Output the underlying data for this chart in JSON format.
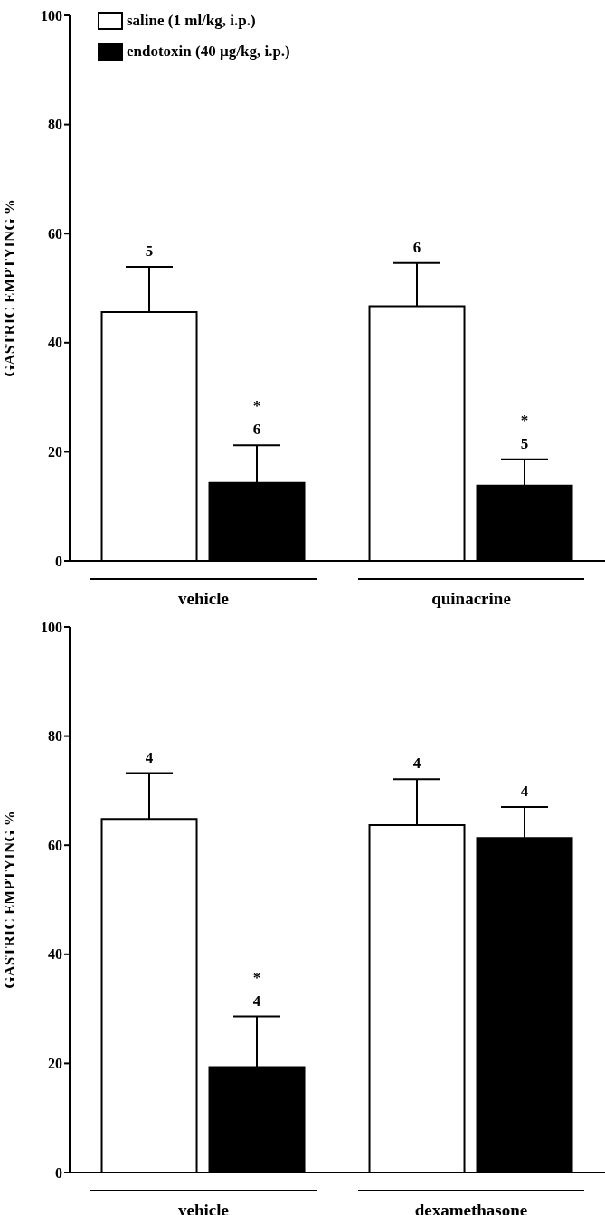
{
  "chart_data": [
    {
      "type": "bar",
      "ylabel": "GASTRIC EMPTYING %",
      "categories": [
        "vehicle",
        "quinacrine"
      ],
      "ylim": [
        0,
        100
      ],
      "yticks": [
        0,
        20,
        40,
        60,
        80,
        100
      ],
      "grid": false,
      "legend": "top left",
      "series": [
        {
          "name": "saline (1 ml/kg, i.p.)",
          "color": "#ffffff",
          "values": [
            45.6,
            46.7
          ],
          "errors": [
            [
              45.6,
              53.9
            ],
            [
              46.7,
              54.6
            ]
          ]
        },
        {
          "name": "endotoxin (40 µg/kg, i.p.)",
          "color": "#000000",
          "values": [
            14.3,
            13.8
          ],
          "errors": [
            [
              14.3,
              21.2
            ],
            [
              13.8,
              18.6
            ]
          ]
        }
      ],
      "annotations": [
        "5",
        "*\n6",
        "6",
        "*\n5"
      ]
    },
    {
      "type": "bar",
      "ylabel": "GASTRIC EMPTYING %",
      "categories": [
        "vehicle",
        "dexamethasone"
      ],
      "ylim": [
        0,
        100
      ],
      "yticks": [
        0,
        20,
        40,
        60,
        80,
        100
      ],
      "grid": false,
      "legend": false,
      "series": [
        {
          "color": "#ffffff",
          "values": [
            64.8,
            63.7
          ],
          "errors": [
            [
              64.8,
              73.2
            ],
            [
              63.7,
              72.1
            ]
          ]
        },
        {
          "color": "#000000",
          "values": [
            19.3,
            61.3
          ],
          "errors": [
            [
              19.3,
              28.6
            ],
            [
              61.3,
              67.0
            ]
          ]
        }
      ],
      "annotations": [
        "4",
        "*\n4",
        "4",
        "4"
      ]
    }
  ]
}
